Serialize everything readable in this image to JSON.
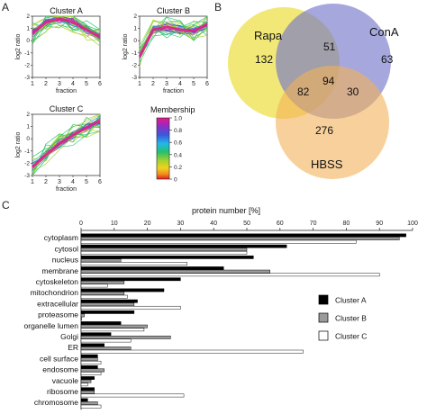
{
  "panels": {
    "a": "A",
    "b": "B",
    "c": "C"
  },
  "chart_data": [
    {
      "type": "line",
      "panel": "A",
      "title": "Cluster A",
      "xlabel": "fraction",
      "ylabel": "log2 ratio",
      "x": [
        1,
        2,
        3,
        4,
        5,
        6
      ],
      "xticks": [
        "1",
        "2",
        "3",
        "4",
        "5",
        "6"
      ],
      "yticks": [
        "-3",
        "-2",
        "-1",
        "0",
        "1",
        "2"
      ],
      "ylim": [
        -3,
        2
      ],
      "mean": [
        0.6,
        1.5,
        1.8,
        1.5,
        0.9,
        0.3
      ]
    },
    {
      "type": "line",
      "panel": "A",
      "title": "Cluster B",
      "xlabel": "fraction",
      "ylabel": "log2 ratio",
      "x": [
        1,
        2,
        3,
        4,
        5,
        6
      ],
      "xticks": [
        "1",
        "2",
        "3",
        "4",
        "5",
        "6"
      ],
      "yticks": [
        "-3",
        "-2",
        "-1",
        "0",
        "1",
        "2"
      ],
      "ylim": [
        -3,
        2
      ],
      "mean": [
        -1.3,
        0.9,
        1.1,
        0.9,
        0.8,
        1.3
      ]
    },
    {
      "type": "line",
      "panel": "A",
      "title": "Cluster C",
      "xlabel": "fraction",
      "ylabel": "log2 ratio",
      "x": [
        1,
        2,
        3,
        4,
        5,
        6
      ],
      "xticks": [
        "1",
        "2",
        "3",
        "4",
        "5",
        "6"
      ],
      "yticks": [
        "-3",
        "-2",
        "-1",
        "0",
        "1",
        "2"
      ],
      "ylim": [
        -3,
        2
      ],
      "mean": [
        -2.3,
        -1.3,
        -0.4,
        0.3,
        0.9,
        1.5
      ]
    },
    {
      "type": "heatmap",
      "panel": "A",
      "title": "Membership",
      "scale_ticks": [
        "1.0",
        "0.8",
        "0.6",
        "0.4",
        "0.2",
        "0"
      ],
      "colors": [
        "#e8168c",
        "#6a35c8",
        "#2f6ee0",
        "#22b8e6",
        "#27c06a",
        "#a6d22e",
        "#f2d21e",
        "#f28a1e",
        "#e81d1d"
      ]
    },
    {
      "type": "venn",
      "panel": "B",
      "sets": [
        "Rapa",
        "ConA",
        "HBSS"
      ],
      "regions": {
        "Rapa_only": 132,
        "ConA_only": 63,
        "HBSS_only": 276,
        "Rapa_ConA": 51,
        "Rapa_HBSS": 82,
        "ConA_HBSS": 30,
        "all": 94
      },
      "colors": {
        "Rapa": "#eee45f",
        "ConA": "#6f72c8",
        "HBSS": "#f3b058"
      }
    },
    {
      "type": "bar",
      "panel": "C",
      "orientation": "horizontal",
      "title": "protein number [%]",
      "xlim": [
        0,
        100
      ],
      "xticks": [
        "0",
        "10",
        "20",
        "30",
        "40",
        "50",
        "60",
        "70",
        "80",
        "90",
        "100"
      ],
      "categories": [
        "cytoplasm",
        "cytosol",
        "nucleus",
        "membrane",
        "cytoskeleton",
        "mitochondrion",
        "extracellular",
        "proteasome",
        "organelle lumen",
        "Golgi",
        "ER",
        "cell surface",
        "endosome",
        "vacuole",
        "ribosome",
        "chromosome"
      ],
      "series": [
        {
          "name": "Cluster A",
          "color": "#000000",
          "values": [
            98,
            62,
            52,
            43,
            30,
            25,
            17,
            16,
            12,
            9,
            7,
            5,
            5,
            4,
            4,
            2
          ]
        },
        {
          "name": "Cluster B",
          "color": "#9a9a9a",
          "values": [
            96,
            50,
            12,
            57,
            13,
            13,
            16,
            1,
            20,
            27,
            15,
            5,
            7,
            3,
            4,
            5
          ]
        },
        {
          "name": "Cluster C",
          "color": "#ffffff",
          "values": [
            83,
            50,
            32,
            90,
            8,
            14,
            30,
            0,
            19,
            15,
            67,
            6,
            6,
            2,
            31,
            6
          ]
        }
      ]
    }
  ]
}
